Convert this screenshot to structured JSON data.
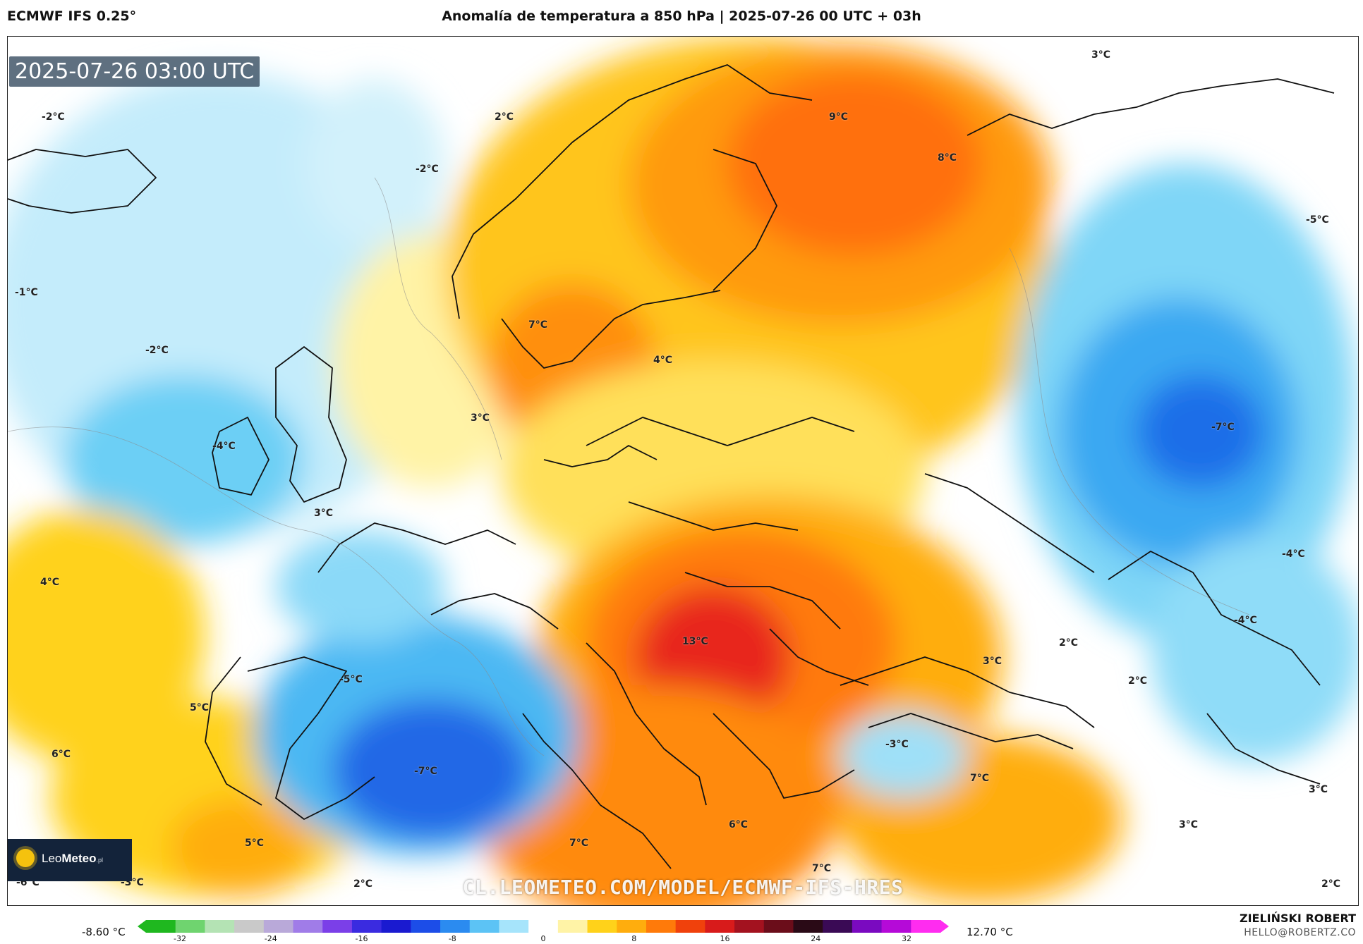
{
  "header": {
    "model": "ECMWF IFS 0.25°",
    "title": "Anomalía de temperatura a 850 hPa | 2025-07-26 00 UTC + 03h"
  },
  "map": {
    "timestamp": "2025-07-26 03:00 UTC",
    "watermark_url": "CL.LEOMETEO.COM/MODEL/ECMWF-IFS-HRES",
    "logo": {
      "name_light": "Leo",
      "name_bold": "Meteo",
      "suffix": ".pl"
    },
    "labels": [
      {
        "text": "-2°C"
      },
      {
        "text": "2°C"
      },
      {
        "text": "-2°C"
      },
      {
        "text": "9°C"
      },
      {
        "text": "8°C"
      },
      {
        "text": "3°C"
      },
      {
        "text": "-5°C"
      },
      {
        "text": "-1°C"
      },
      {
        "text": "-2°C"
      },
      {
        "text": "7°C"
      },
      {
        "text": "4°C"
      },
      {
        "text": "3°C"
      },
      {
        "text": "-4°C"
      },
      {
        "text": "-7°C"
      },
      {
        "text": "3°C"
      },
      {
        "text": "4°C"
      },
      {
        "text": "-4°C"
      },
      {
        "text": "-4°C"
      },
      {
        "text": "13°C"
      },
      {
        "text": "2°C"
      },
      {
        "text": "3°C"
      },
      {
        "text": "2°C"
      },
      {
        "text": "-5°C"
      },
      {
        "text": "5°C"
      },
      {
        "text": "6°C"
      },
      {
        "text": "-3°C"
      },
      {
        "text": "-7°C"
      },
      {
        "text": "7°C"
      },
      {
        "text": "3°C"
      },
      {
        "text": "6°C"
      },
      {
        "text": "3°C"
      },
      {
        "text": "5°C"
      },
      {
        "text": "7°C"
      },
      {
        "text": "7°C"
      },
      {
        "text": "-6°C"
      },
      {
        "text": "-3°C"
      },
      {
        "text": "2°C"
      },
      {
        "text": "2°C"
      }
    ]
  },
  "legend": {
    "min_value": "-8.60 °C",
    "max_value": "12.70 °C",
    "ticks": [
      "-32",
      "-24",
      "-16",
      "-8",
      "0",
      "8",
      "16",
      "24",
      "32"
    ],
    "colors": [
      "#1fb81f",
      "#6fd46f",
      "#b4e3b4",
      "#c9c9c9",
      "#b9a9d9",
      "#a07ce8",
      "#7b3fe8",
      "#3a2be0",
      "#1a1ad0",
      "#1c4de8",
      "#2b8bf0",
      "#5cc3f5",
      "#a6e4fb",
      "#ffffff",
      "#fff3a6",
      "#ffd21a",
      "#ffad0d",
      "#ff7a0a",
      "#f0410c",
      "#d81b1b",
      "#a3121f",
      "#6b0d1a",
      "#2a0a16",
      "#3a0a55",
      "#7a0ac0",
      "#b50ad8",
      "#ff2cf0"
    ]
  },
  "footer": {
    "author": "ZIELIŃSKI ROBERT",
    "email": "HELLO@ROBERTZ.CO"
  }
}
